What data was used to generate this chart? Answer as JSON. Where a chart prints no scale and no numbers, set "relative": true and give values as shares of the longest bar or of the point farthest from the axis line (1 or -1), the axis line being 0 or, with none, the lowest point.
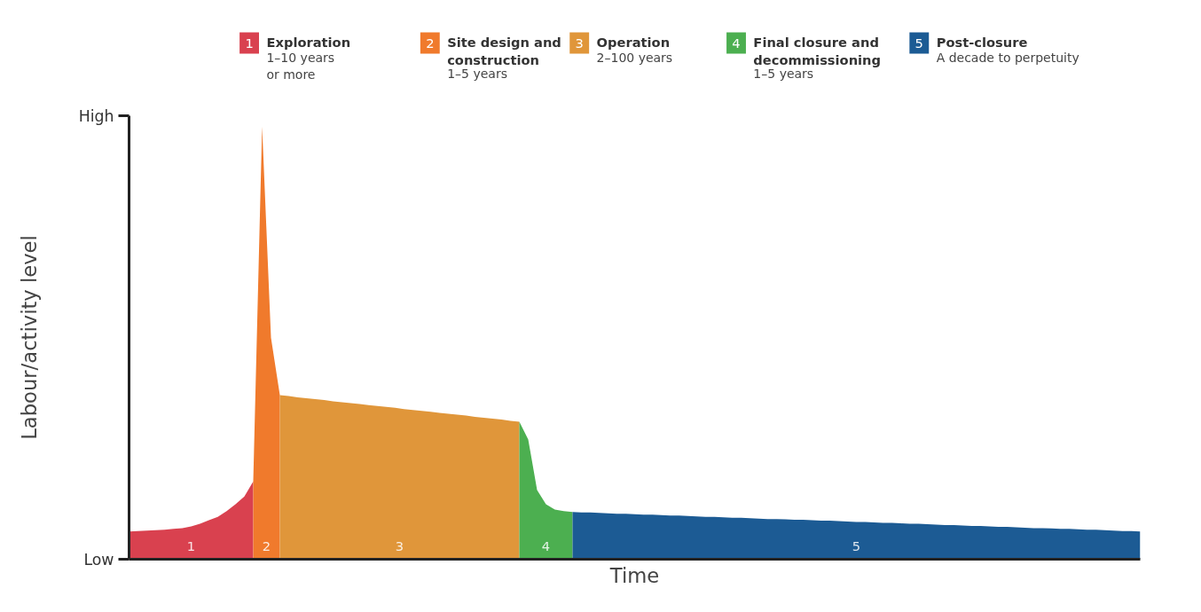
{
  "chart_data": {
    "type": "area",
    "xlabel": "Time",
    "ylabel": "Labour/activity level",
    "relative": true,
    "categories": [
      null,
      null,
      null,
      null,
      null,
      null,
      null,
      null,
      null,
      null,
      null,
      null,
      null,
      null,
      null,
      null,
      null,
      null,
      null,
      null,
      null,
      null,
      null,
      null,
      null,
      null,
      null,
      null,
      null,
      null,
      null,
      null,
      null,
      null,
      null,
      null,
      null,
      null,
      null,
      null,
      null,
      null,
      null,
      null,
      null,
      null,
      null,
      null,
      null,
      null,
      null,
      null,
      null,
      null,
      null,
      null,
      null,
      null,
      null,
      null,
      null,
      null,
      null,
      null,
      null,
      null,
      null,
      null,
      null,
      null,
      null,
      null,
      null,
      null,
      null,
      null,
      null,
      null,
      null,
      null,
      null,
      null,
      null,
      null,
      null,
      null,
      null,
      null,
      null,
      null,
      null,
      null,
      null,
      null,
      null,
      null,
      null,
      null,
      null,
      null,
      null,
      null,
      null,
      null,
      null,
      null,
      null,
      null,
      null,
      null,
      null,
      null,
      null,
      null,
      null
    ],
    "legend": "top",
    "series": [
      {
        "name": "Exploration",
        "color": "#d9414f",
        "values": [
          0.064,
          0.065,
          0.066,
          0.067,
          0.068,
          0.07,
          0.072,
          0.076,
          0.082,
          0.09,
          0.098,
          0.111,
          0.127,
          0.145,
          0.18,
          null,
          null,
          null,
          null,
          null,
          null,
          null,
          null,
          null,
          null,
          null,
          null,
          null,
          null,
          null,
          null,
          null,
          null,
          null,
          null,
          null,
          null,
          null,
          null,
          null,
          null,
          null,
          null,
          null,
          null,
          null,
          null,
          null,
          null,
          null,
          null,
          null,
          null,
          null,
          null,
          null,
          null,
          null,
          null,
          null,
          null,
          null,
          null,
          null,
          null,
          null,
          null,
          null,
          null,
          null,
          null,
          null,
          null,
          null,
          null,
          null,
          null,
          null,
          null,
          null,
          null,
          null,
          null,
          null,
          null,
          null,
          null,
          null,
          null,
          null,
          null,
          null,
          null,
          null,
          null,
          null,
          null,
          null,
          null,
          null,
          null,
          null,
          null,
          null,
          null,
          null,
          null,
          null,
          null,
          null,
          null,
          null,
          null,
          null,
          null
        ]
      },
      {
        "name": "Site design and\nconstruction",
        "color": "#f07a2c",
        "values": [
          null,
          null,
          null,
          null,
          null,
          null,
          null,
          null,
          null,
          null,
          null,
          null,
          null,
          null,
          0.18,
          1,
          0.512,
          0.379,
          null,
          null,
          null,
          null,
          null,
          null,
          null,
          null,
          null,
          null,
          null,
          null,
          null,
          null,
          null,
          null,
          null,
          null,
          null,
          null,
          null,
          null,
          null,
          null,
          null,
          null,
          null,
          null,
          null,
          null,
          null,
          null,
          null,
          null,
          null,
          null,
          null,
          null,
          null,
          null,
          null,
          null,
          null,
          null,
          null,
          null,
          null,
          null,
          null,
          null,
          null,
          null,
          null,
          null,
          null,
          null,
          null,
          null,
          null,
          null,
          null,
          null,
          null,
          null,
          null,
          null,
          null,
          null,
          null,
          null,
          null,
          null,
          null,
          null,
          null,
          null,
          null,
          null,
          null,
          null,
          null,
          null,
          null,
          null,
          null,
          null,
          null,
          null,
          null,
          null,
          null,
          null,
          null,
          null,
          null,
          null,
          null
        ]
      },
      {
        "name": "Operation",
        "color": "#e0963a",
        "values": [
          null,
          null,
          null,
          null,
          null,
          null,
          null,
          null,
          null,
          null,
          null,
          null,
          null,
          null,
          null,
          null,
          null,
          0.379,
          0.377,
          0.374,
          0.372,
          0.37,
          0.368,
          0.365,
          0.363,
          0.361,
          0.359,
          0.356,
          0.354,
          0.352,
          0.35,
          0.347,
          0.345,
          0.343,
          0.341,
          0.338,
          0.336,
          0.334,
          0.332,
          0.329,
          0.327,
          0.325,
          0.323,
          0.32,
          0.318,
          null,
          null,
          null,
          null,
          null,
          null,
          null,
          null,
          null,
          null,
          null,
          null,
          null,
          null,
          null,
          null,
          null,
          null,
          null,
          null,
          null,
          null,
          null,
          null,
          null,
          null,
          null,
          null,
          null,
          null,
          null,
          null,
          null,
          null,
          null,
          null,
          null,
          null,
          null,
          null,
          null,
          null,
          null,
          null,
          null,
          null,
          null,
          null,
          null,
          null,
          null,
          null,
          null,
          null,
          null,
          null,
          null,
          null,
          null,
          null,
          null,
          null,
          null,
          null,
          null,
          null,
          null,
          null,
          null,
          null
        ]
      },
      {
        "name": "Final closure and\ndecommissioning",
        "color": "#4caf50",
        "values": [
          null,
          null,
          null,
          null,
          null,
          null,
          null,
          null,
          null,
          null,
          null,
          null,
          null,
          null,
          null,
          null,
          null,
          null,
          null,
          null,
          null,
          null,
          null,
          null,
          null,
          null,
          null,
          null,
          null,
          null,
          null,
          null,
          null,
          null,
          null,
          null,
          null,
          null,
          null,
          null,
          null,
          null,
          null,
          null,
          0.318,
          0.277,
          0.16,
          0.127,
          0.115,
          0.111,
          0.109,
          null,
          null,
          null,
          null,
          null,
          null,
          null,
          null,
          null,
          null,
          null,
          null,
          null,
          null,
          null,
          null,
          null,
          null,
          null,
          null,
          null,
          null,
          null,
          null,
          null,
          null,
          null,
          null,
          null,
          null,
          null,
          null,
          null,
          null,
          null,
          null,
          null,
          null,
          null,
          null,
          null,
          null,
          null,
          null,
          null,
          null,
          null,
          null,
          null,
          null,
          null,
          null,
          null,
          null,
          null,
          null,
          null,
          null,
          null,
          null,
          null,
          null,
          null,
          null
        ]
      },
      {
        "name": "Post-closure",
        "color": "#1c5b94",
        "values": [
          null,
          null,
          null,
          null,
          null,
          null,
          null,
          null,
          null,
          null,
          null,
          null,
          null,
          null,
          null,
          null,
          null,
          null,
          null,
          null,
          null,
          null,
          null,
          null,
          null,
          null,
          null,
          null,
          null,
          null,
          null,
          null,
          null,
          null,
          null,
          null,
          null,
          null,
          null,
          null,
          null,
          null,
          null,
          null,
          null,
          null,
          null,
          null,
          null,
          null,
          0.109,
          0.108,
          0.108,
          0.107,
          0.106,
          0.105,
          0.105,
          0.104,
          0.103,
          0.103,
          0.102,
          0.101,
          0.101,
          0.1,
          0.099,
          0.098,
          0.098,
          0.097,
          0.096,
          0.096,
          0.095,
          0.094,
          0.093,
          0.093,
          0.092,
          0.091,
          0.091,
          0.09,
          0.089,
          0.089,
          0.088,
          0.087,
          0.086,
          0.086,
          0.085,
          0.084,
          0.084,
          0.083,
          0.082,
          0.082,
          0.081,
          0.08,
          0.079,
          0.079,
          0.078,
          0.077,
          0.077,
          0.076,
          0.075,
          0.075,
          0.074,
          0.073,
          0.072,
          0.072,
          0.071,
          0.07,
          0.07,
          0.069,
          0.068,
          0.068,
          0.067,
          0.066,
          0.065,
          0.065,
          0.064
        ]
      }
    ],
    "annotations": [
      "1",
      "2",
      "3",
      "4",
      "5",
      "1–10 years\nor more",
      "1–5 years",
      "2–100 years",
      "1–5 years",
      "A decade to perpetuity",
      "Low",
      "High"
    ]
  }
}
